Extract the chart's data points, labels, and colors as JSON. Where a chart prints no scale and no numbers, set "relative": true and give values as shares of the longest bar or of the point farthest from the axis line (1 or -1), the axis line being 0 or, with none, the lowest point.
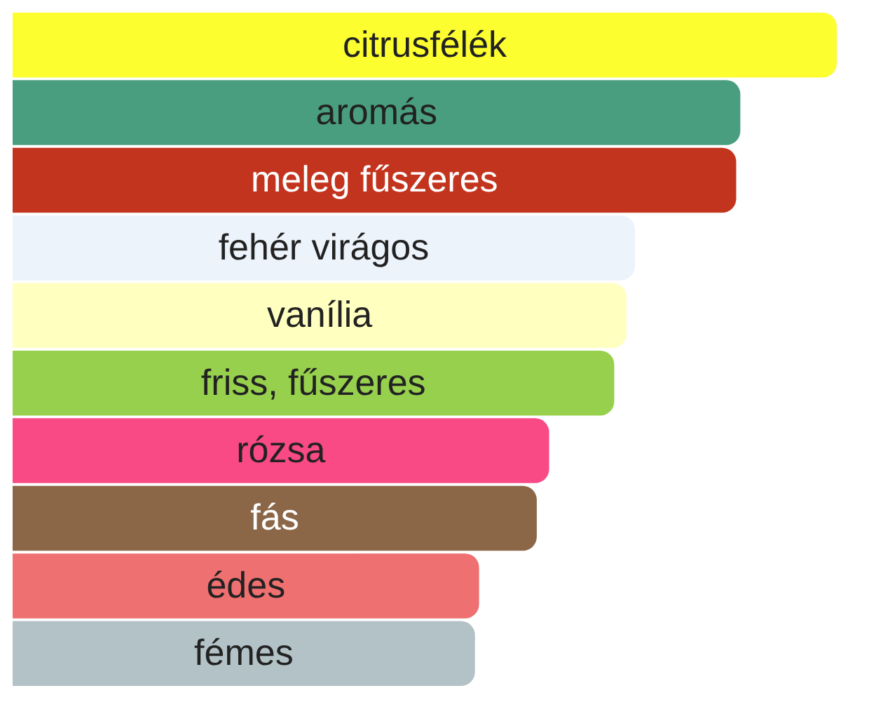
{
  "chart_data": {
    "type": "bar",
    "orientation": "horizontal",
    "relative": true,
    "categories": [
      "citrusfélék",
      "aromás",
      "meleg fűszeres",
      "fehér virágos",
      "vanília",
      "friss, fűszeres",
      "rózsa",
      "fás",
      "édes",
      "fémes"
    ],
    "values": [
      1,
      0.883,
      0.878,
      0.755,
      0.745,
      0.73,
      0.651,
      0.636,
      0.566,
      0.561
    ],
    "colors": [
      "#fcfe2f",
      "#4a9e80",
      "#c3341e",
      "#edf3fb",
      "#ffffc0",
      "#96d04d",
      "#f94a85",
      "#8b6748",
      "#ee7070",
      "#b3c2c6"
    ],
    "legend": false
  }
}
